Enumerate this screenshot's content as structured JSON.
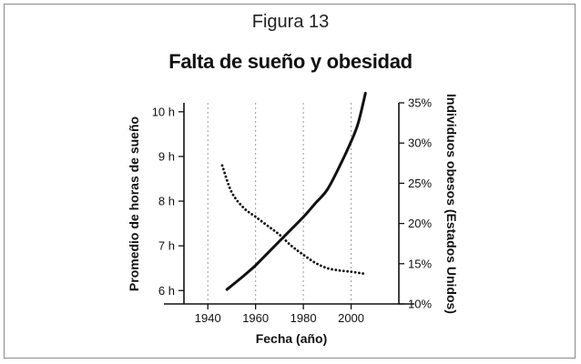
{
  "figure_label": "Figura 13",
  "chart_data": {
    "type": "line",
    "title": "Falta de sueño y obesidad",
    "xlabel": "Fecha (año)",
    "ylabel_left": "Promedio de horas de sueño",
    "ylabel_right": "Individuos obesos (Estados Unidos)",
    "xlim": [
      1930,
      2020
    ],
    "ylim_left": [
      5.7,
      10.2
    ],
    "ylim_right": [
      10,
      35
    ],
    "x_ticks": [
      1940,
      1960,
      1980,
      2000
    ],
    "x_tick_labels": [
      "1940",
      "1960",
      "1980",
      "2000"
    ],
    "y_left_ticks": [
      6,
      7,
      8,
      9,
      10
    ],
    "y_left_tick_labels": [
      "6 h",
      "7 h",
      "8 h",
      "9 h",
      "10 h"
    ],
    "y_right_ticks": [
      10,
      15,
      20,
      25,
      30,
      35
    ],
    "y_right_tick_labels": [
      "10%",
      "15%",
      "20%",
      "25%",
      "30%",
      "35%"
    ],
    "grid": "vertical dotted at x ticks",
    "series": [
      {
        "axis": "left",
        "style": "dotted",
        "color": "#111111",
        "x": [
          1946,
          1950,
          1955,
          1960,
          1965,
          1970,
          1975,
          1980,
          1985,
          1990,
          1995,
          2000,
          2005
        ],
        "values": [
          8.8,
          8.2,
          7.85,
          7.65,
          7.45,
          7.25,
          7.0,
          6.8,
          6.62,
          6.5,
          6.45,
          6.42,
          6.38
        ]
      },
      {
        "axis": "right",
        "style": "solid",
        "color": "#111111",
        "x": [
          1948,
          1955,
          1960,
          1965,
          1970,
          1975,
          1980,
          1985,
          1990,
          1995,
          2000,
          2003,
          2006
        ],
        "values": [
          11.8,
          13.5,
          14.8,
          16.3,
          17.8,
          19.3,
          20.8,
          22.5,
          24.2,
          27.0,
          30.2,
          32.5,
          36.2
        ]
      }
    ]
  }
}
